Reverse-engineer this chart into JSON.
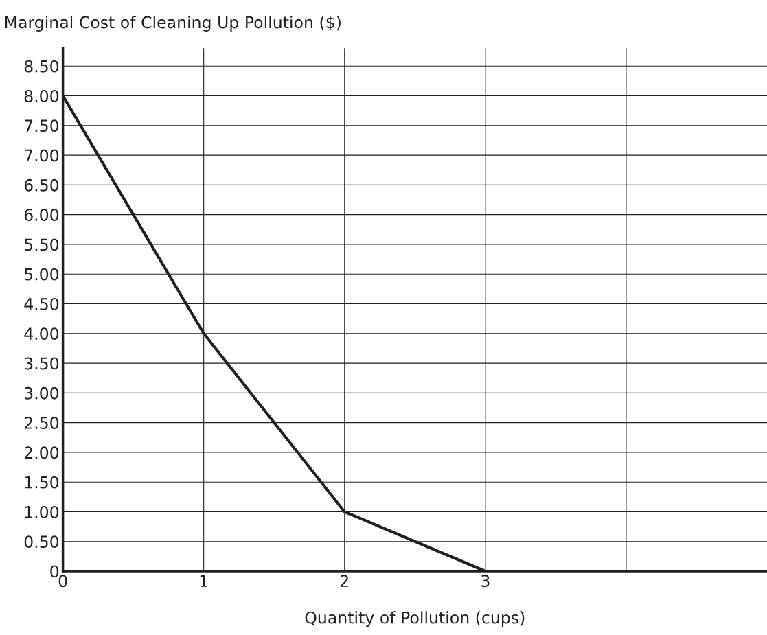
{
  "chart_data": {
    "type": "line",
    "ylabel": "Marginal Cost of Cleaning Up Pollution ($)",
    "xlabel": "Quantity of Pollution (cups)",
    "x": [
      0,
      1,
      2,
      3
    ],
    "series": [
      {
        "color": "#231f20",
        "values": [
          8.0,
          4.0,
          1.0,
          0
        ]
      }
    ],
    "xlim": [
      0,
      5
    ],
    "xticks": [
      0,
      1,
      2,
      3,
      {
        "value": 4,
        "label": null
      }
    ],
    "ylim": [
      0,
      8.8
    ],
    "yticks": [
      0,
      {
        "value": 0.5,
        "label": "0.50"
      },
      {
        "value": 1,
        "label": "1.00"
      },
      {
        "value": 1.5,
        "label": "1.50"
      },
      {
        "value": 2,
        "label": "2.00"
      },
      {
        "value": 2.5,
        "label": "2.50"
      },
      {
        "value": 3,
        "label": "3.00"
      },
      {
        "value": 3.5,
        "label": "3.50"
      },
      {
        "value": 4,
        "label": "4.00"
      },
      {
        "value": 4.5,
        "label": "4.50"
      },
      {
        "value": 5,
        "label": "5.00"
      },
      {
        "value": 5.5,
        "label": "5.50"
      },
      {
        "value": 6,
        "label": "6.00"
      },
      {
        "value": 6.5,
        "label": "6.50"
      },
      {
        "value": 7,
        "label": "7.00"
      },
      {
        "value": 7.5,
        "label": "7.50"
      },
      {
        "value": 8,
        "label": "8.00"
      },
      {
        "value": 8.5,
        "label": "8.50"
      }
    ],
    "grid": true,
    "marker": "none",
    "line_style": "solid"
  }
}
